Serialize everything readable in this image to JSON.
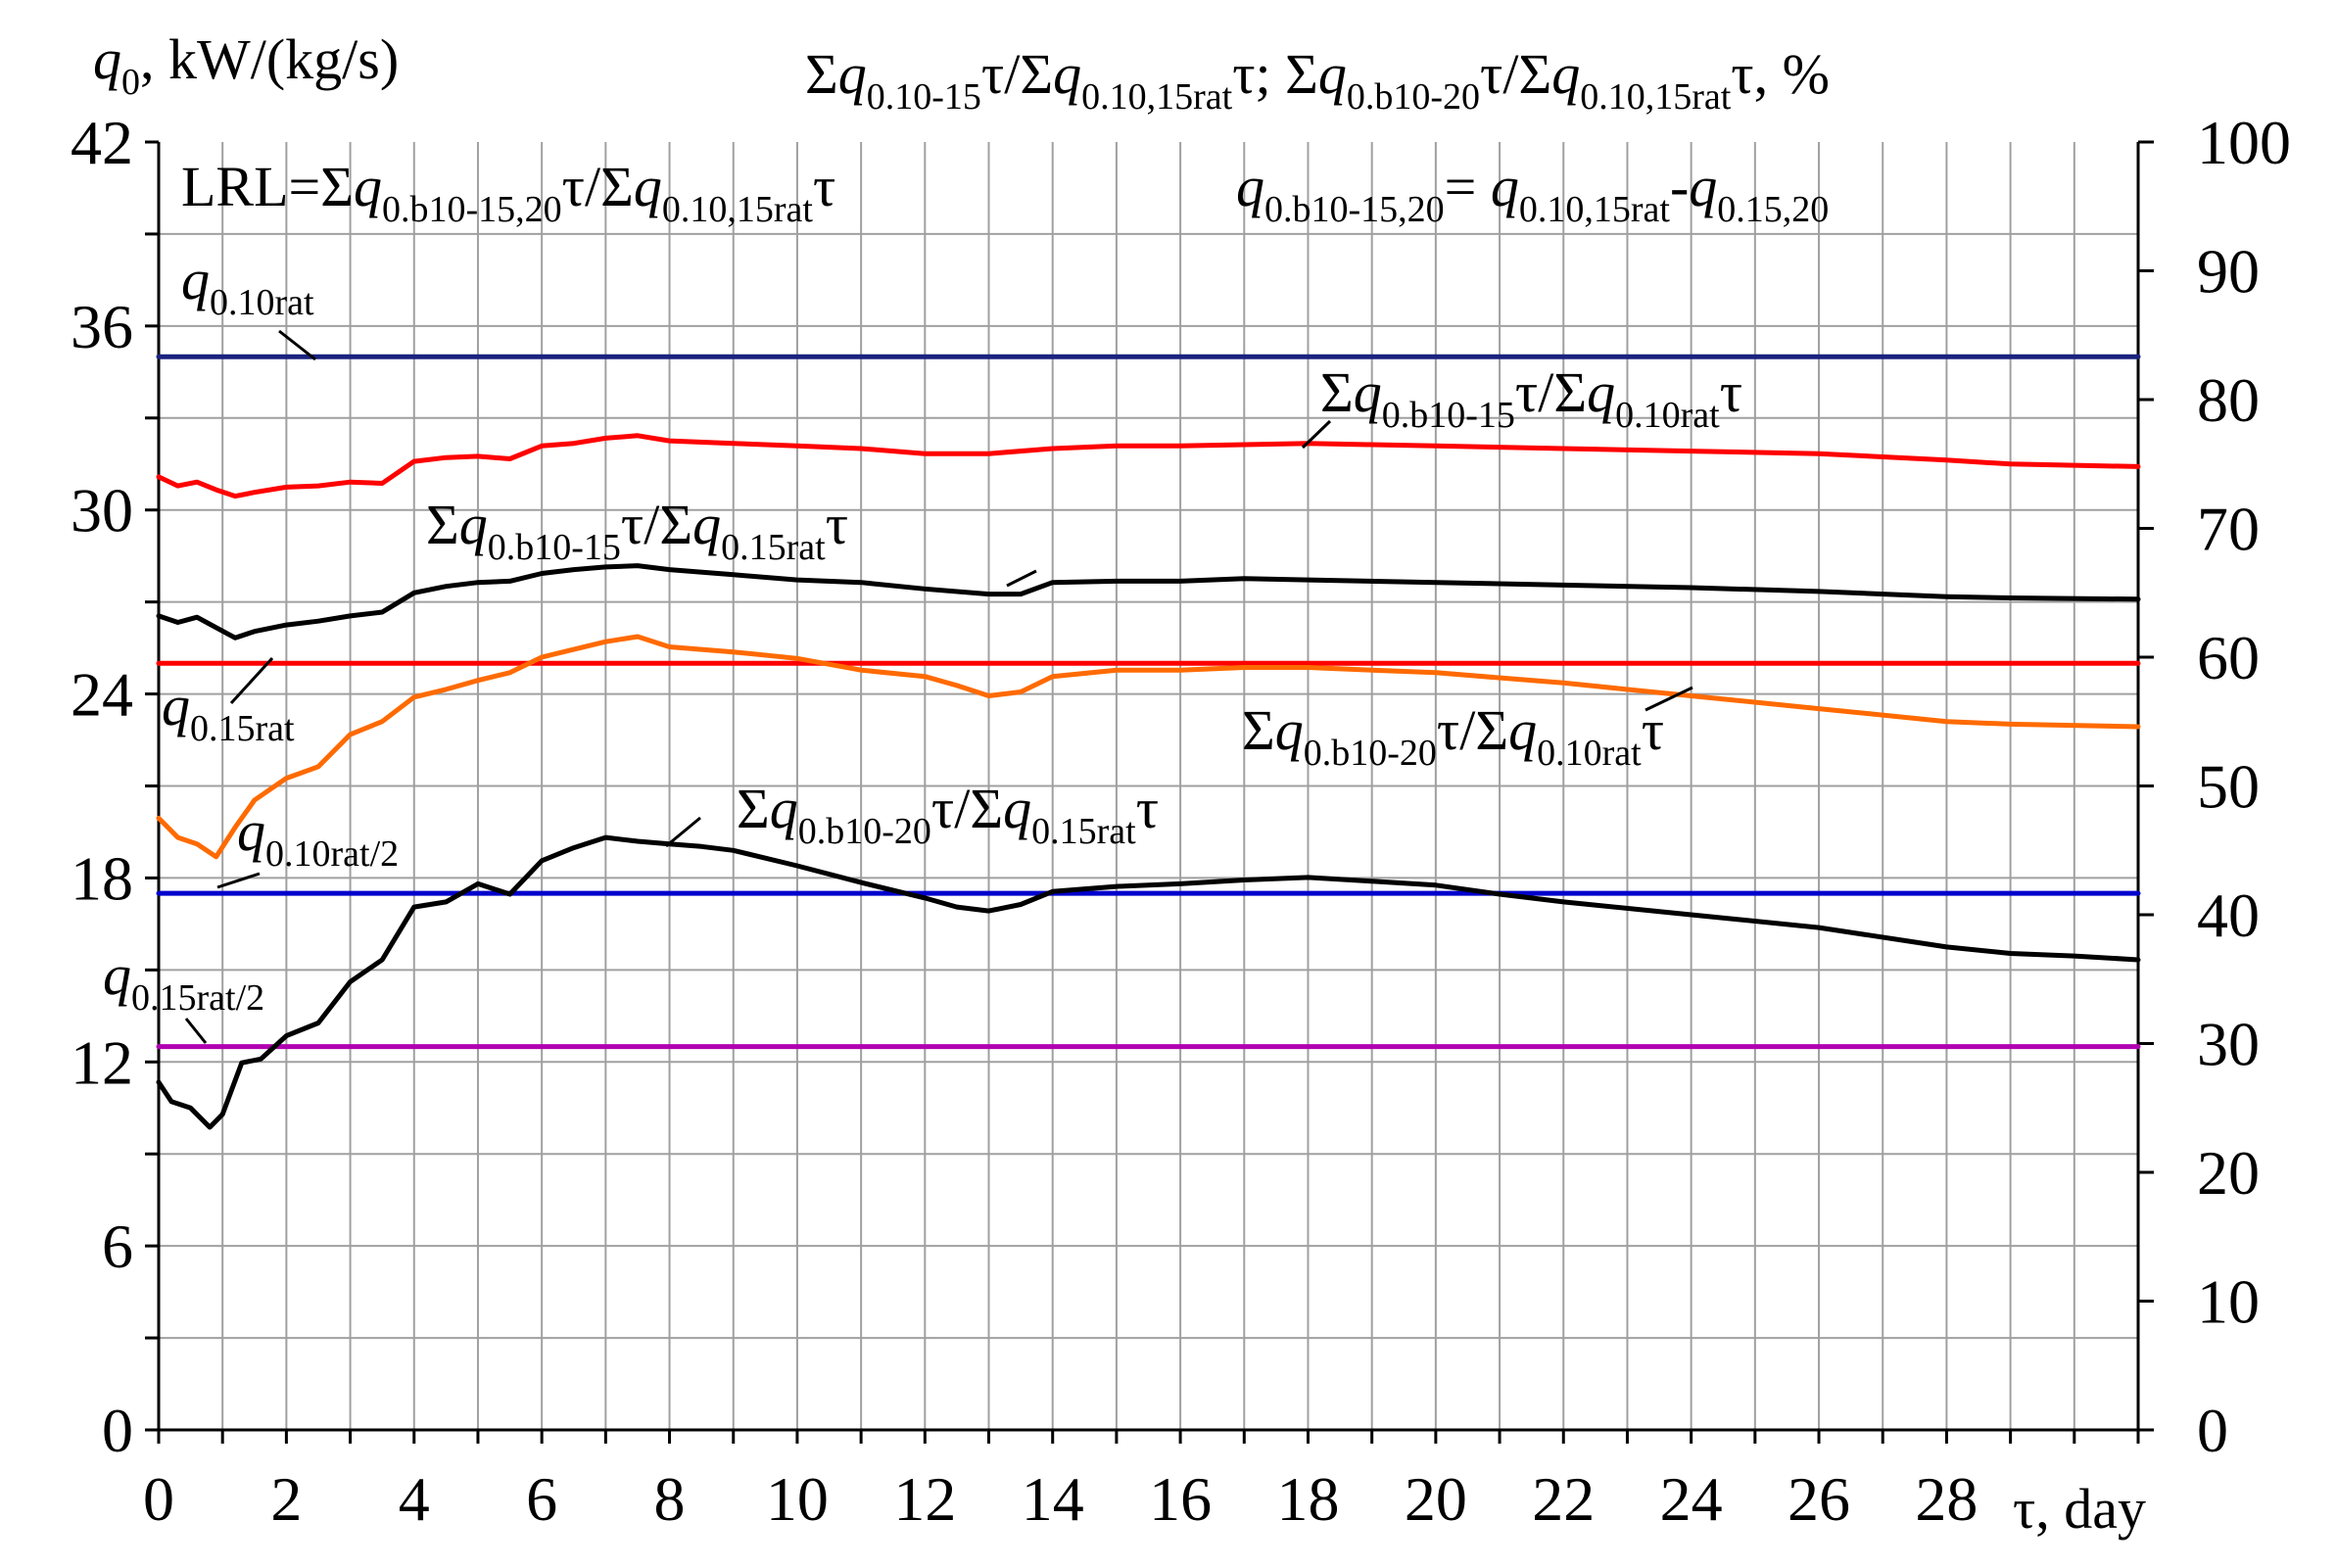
{
  "chart_data": {
    "type": "line",
    "left_axis": {
      "label": "q0, kW/(kg/s)",
      "ylim": [
        0,
        42
      ],
      "ticks": [
        "0",
        "6",
        "12",
        "18",
        "24",
        "30",
        "36",
        "42"
      ]
    },
    "right_axis": {
      "label": "Σq0.10-15τ/Σq0.10,15ratτ; Σq0.b10-20τ/Σq0.10,15ratτ, %",
      "ylim": [
        0,
        100
      ],
      "ticks": [
        "0",
        "10",
        "20",
        "30",
        "40",
        "50",
        "60",
        "70",
        "80",
        "90",
        "100"
      ]
    },
    "x_axis": {
      "label": "τ, day",
      "xlim": [
        0,
        31
      ],
      "ticks": [
        "0",
        "2",
        "4",
        "6",
        "8",
        "10",
        "12",
        "14",
        "16",
        "18",
        "20",
        "22",
        "24",
        "26",
        "28"
      ]
    },
    "grid": true,
    "annotations": {
      "lrl": "LRL=Σq0.b10-15,20τ/Σq0.10,15ratτ",
      "formula": "q0.b10-15,20= q0.10,15rat-q0.15,20"
    },
    "series": [
      {
        "name": "q0.10rat",
        "axis": "left",
        "color": "#1a237e",
        "x": [
          0,
          31
        ],
        "y": [
          35.0,
          35.0
        ]
      },
      {
        "name": "q0.15rat",
        "axis": "left",
        "color": "#ff0000",
        "x": [
          0,
          31
        ],
        "y": [
          25.0,
          25.0
        ]
      },
      {
        "name": "q0.10rat/2",
        "axis": "left",
        "color": "#0000cc",
        "x": [
          0,
          31
        ],
        "y": [
          17.5,
          17.5
        ]
      },
      {
        "name": "q0.15rat/2",
        "axis": "left",
        "color": "#b000b0",
        "x": [
          0,
          31
        ],
        "y": [
          12.5,
          12.5
        ]
      },
      {
        "name": "Σq0.b10-15τ/Σq0.10ratτ",
        "axis": "right",
        "color": "#ff0000",
        "x": [
          0,
          0.3,
          0.6,
          0.9,
          1.2,
          1.5,
          2,
          2.5,
          3,
          3.5,
          4,
          4.5,
          5,
          5.5,
          6,
          6.5,
          7,
          7.5,
          8,
          9,
          10,
          11,
          12,
          13,
          14,
          15,
          16,
          17,
          18,
          19,
          20,
          22,
          24,
          26,
          28,
          29,
          31
        ],
        "y": [
          74,
          73.3,
          73.6,
          73,
          72.5,
          72.8,
          73.2,
          73.3,
          73.6,
          73.5,
          75.2,
          75.5,
          75.6,
          75.4,
          76.4,
          76.6,
          77.0,
          77.2,
          76.8,
          76.6,
          76.4,
          76.2,
          75.8,
          75.8,
          76.2,
          76.4,
          76.4,
          76.5,
          76.6,
          76.5,
          76.4,
          76.2,
          76.0,
          75.8,
          75.3,
          75.0,
          74.8
        ]
      },
      {
        "name": "Σq0.b10-15τ/Σq0.15ratτ",
        "axis": "right",
        "color": "#000000",
        "x": [
          0,
          0.3,
          0.6,
          0.9,
          1.2,
          1.5,
          2,
          2.5,
          3,
          3.5,
          4,
          4.5,
          5,
          5.5,
          6,
          6.5,
          7,
          7.5,
          8,
          9,
          10,
          11,
          12,
          13,
          13.5,
          14,
          15,
          16,
          17,
          18,
          20,
          22,
          24,
          26,
          28,
          29,
          31
        ],
        "y": [
          63.2,
          62.7,
          63.1,
          62.3,
          61.5,
          62.0,
          62.5,
          62.8,
          63.2,
          63.5,
          65.0,
          65.5,
          65.8,
          65.9,
          66.5,
          66.8,
          67.0,
          67.1,
          66.8,
          66.4,
          66.0,
          65.8,
          65.3,
          64.9,
          64.9,
          65.8,
          65.9,
          65.9,
          66.1,
          66.0,
          65.8,
          65.6,
          65.4,
          65.1,
          64.7,
          64.6,
          64.5
        ]
      },
      {
        "name": "Σq0.b10-20τ/Σq0.10ratτ",
        "axis": "right",
        "color": "#ff6a00",
        "x": [
          0,
          0.3,
          0.6,
          0.9,
          1.2,
          1.5,
          2,
          2.5,
          3,
          3.5,
          4,
          4.5,
          5,
          5.5,
          6,
          6.5,
          7,
          7.5,
          8,
          8.5,
          9,
          10,
          11,
          12,
          12.5,
          13,
          13.5,
          14,
          15,
          16,
          17,
          18,
          19,
          20,
          22,
          24,
          26,
          28,
          29,
          31
        ],
        "y": [
          47.5,
          46,
          45.5,
          44.5,
          46.8,
          48.9,
          50.6,
          51.5,
          54.0,
          55.0,
          56.9,
          57.5,
          58.2,
          58.8,
          60.0,
          60.6,
          61.2,
          61.6,
          60.8,
          60.6,
          60.4,
          59.9,
          59.0,
          58.5,
          57.8,
          57.0,
          57.3,
          58.5,
          59.0,
          59.0,
          59.2,
          59.2,
          59.0,
          58.8,
          58.0,
          57.0,
          56.0,
          55.0,
          54.8,
          54.6
        ]
      },
      {
        "name": "Σq0.b10-20τ/Σq0.15ratτ",
        "axis": "right",
        "color": "#000000",
        "x": [
          0,
          0.2,
          0.5,
          0.8,
          1,
          1.3,
          1.6,
          2,
          2.5,
          3,
          3.5,
          4,
          4.5,
          5,
          5.5,
          6,
          6.5,
          7,
          7.5,
          8,
          8.5,
          9,
          10,
          11,
          12,
          12.5,
          13,
          13.5,
          14,
          15,
          16,
          17,
          18,
          19,
          20,
          21,
          22,
          24,
          26,
          28,
          29,
          30,
          31
        ],
        "y": [
          27,
          25.5,
          25.0,
          23.5,
          24.5,
          28.5,
          28.8,
          30.6,
          31.6,
          34.8,
          36.5,
          40.6,
          41.0,
          42.4,
          41.6,
          44.2,
          45.2,
          46.0,
          45.7,
          45.5,
          45.3,
          45.0,
          43.8,
          42.5,
          41.3,
          40.6,
          40.3,
          40.8,
          41.8,
          42.2,
          42.4,
          42.7,
          42.9,
          42.6,
          42.3,
          41.6,
          41.0,
          40.0,
          39.0,
          37.5,
          37.0,
          36.8,
          36.5
        ]
      }
    ]
  }
}
